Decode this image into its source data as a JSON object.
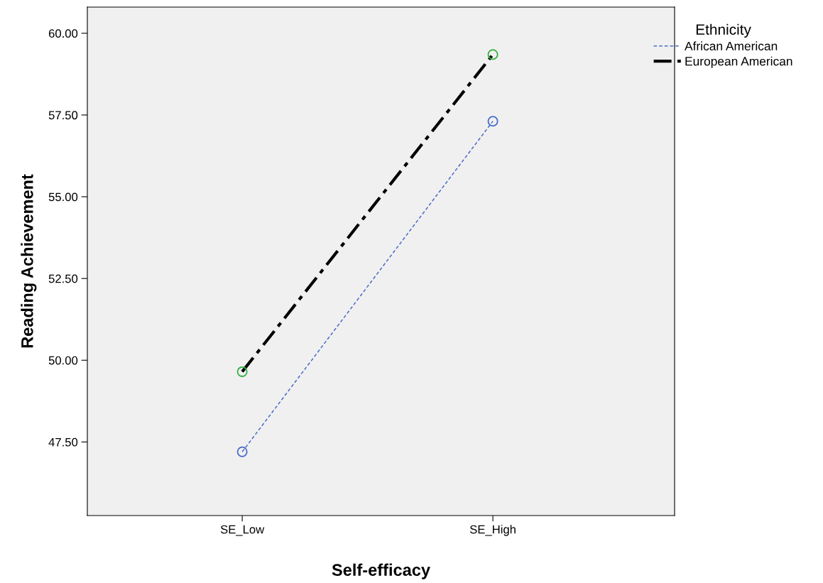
{
  "chart_data": {
    "type": "line",
    "xlabel": "Self-efficacy",
    "ylabel": "Reading Achievement",
    "legend_title": "Ethnicity",
    "categories": [
      "SE_Low",
      "SE_High"
    ],
    "series": [
      {
        "name": "African American",
        "color": "#4a6cc9",
        "colors": [
          "#4a6cc9",
          "#4a6cc9"
        ],
        "line_style": "dashed",
        "values": [
          47.2,
          57.31
        ]
      },
      {
        "name": "European American",
        "color": "#000000",
        "colors": [
          "#33b040",
          "#33b040"
        ],
        "line_style": "dashdot",
        "values": [
          49.65,
          59.35
        ]
      }
    ],
    "ylim": [
      45.25,
      60.8
    ],
    "yticks": [
      {
        "value": 47.5,
        "label": "47.50"
      },
      {
        "value": 50,
        "label": "50.00"
      },
      {
        "value": 52.5,
        "label": "52.50"
      },
      {
        "value": 55,
        "label": "55.00"
      },
      {
        "value": 57.5,
        "label": "57.50"
      },
      {
        "value": 60,
        "label": "60.00"
      }
    ],
    "marker": "circle",
    "grid": false,
    "legend": "top right"
  }
}
